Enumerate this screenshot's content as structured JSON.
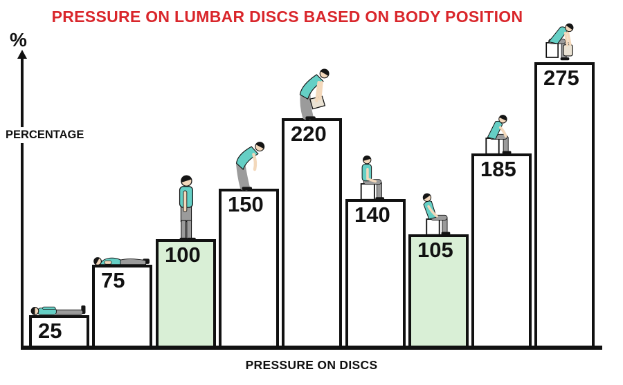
{
  "title": {
    "text": "PRESSURE ON LUMBAR DISCS BASED ON BODY POSITION",
    "color": "#d9262b"
  },
  "y_axis": {
    "symbol": "%",
    "label": "PERCENTAGE"
  },
  "x_axis": {
    "label": "PRESSURE ON DISCS"
  },
  "chart_data": {
    "type": "bar",
    "title": "PRESSURE ON LUMBAR DISCS BASED ON BODY POSITION",
    "xlabel": "PRESSURE ON DISCS",
    "ylabel": "PERCENTAGE",
    "unit": "%",
    "ylim": [
      0,
      300
    ],
    "grid": false,
    "legend": false,
    "categories": [
      "Lying on back",
      "Lying on side",
      "Standing upright",
      "Standing bent forward",
      "Standing bent forward lifting load",
      "Sitting upright",
      "Sitting leaning back",
      "Sitting leaning forward",
      "Sitting bent forward lifting load"
    ],
    "values": [
      25,
      75,
      100,
      150,
      220,
      140,
      105,
      185,
      275
    ],
    "highlighted_indices": [
      2,
      6
    ],
    "bar_fill": "#ffffff",
    "highlight_fill": "#d9efd6",
    "bar_border_color": "#111111",
    "figures": [
      "lying-supine",
      "lying-side",
      "standing-upright",
      "standing-bent",
      "standing-bent-lifting",
      "sitting-upright",
      "sitting-reclined",
      "sitting-forward",
      "sitting-lifting"
    ]
  },
  "figure_colors": {
    "shirt": "#65cfc5",
    "pants": "#9b9b9b",
    "skin": "#f3d8bb",
    "hair": "#151515",
    "object": "#eae2d3",
    "stool": "#ffffff"
  }
}
